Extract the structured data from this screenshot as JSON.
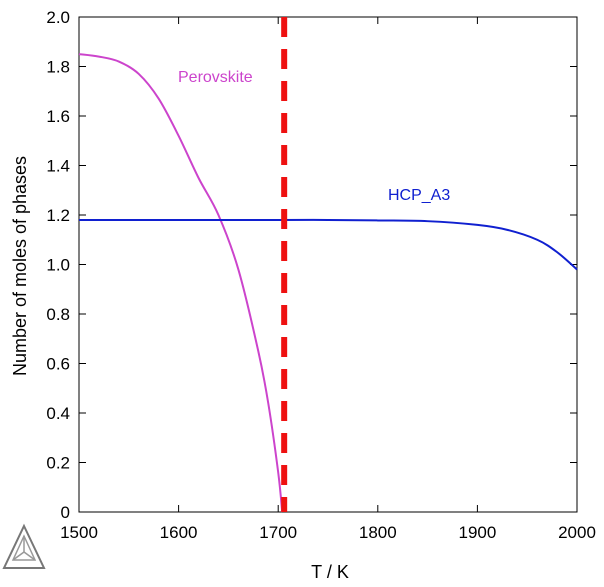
{
  "chart_data": {
    "type": "line",
    "title": "",
    "xlabel": "T / K",
    "ylabel": "Number of moles of phases",
    "xlim": [
      1500,
      2000
    ],
    "ylim": [
      0,
      2.0
    ],
    "xticks": [
      1500,
      1600,
      1700,
      1800,
      1900,
      2000
    ],
    "xtick_labels": [
      "1500",
      "1600",
      "1700",
      "1800",
      "1900",
      "2000"
    ],
    "yticks": [
      0,
      0.2,
      0.4,
      0.6,
      0.8,
      1.0,
      1.2,
      1.4,
      1.6,
      1.8,
      2.0
    ],
    "ytick_labels": [
      "0",
      "0.2",
      "0.4",
      "0.6",
      "0.8",
      "1.0",
      "1.2",
      "1.4",
      "1.6",
      "1.8",
      "2.0"
    ],
    "grid": false,
    "series": [
      {
        "name": "Perovskite",
        "color": "#cc44cc",
        "x": [
          1500,
          1520,
          1540,
          1560,
          1580,
          1600,
          1620,
          1640,
          1660,
          1680,
          1690,
          1700,
          1704
        ],
        "y": [
          1.85,
          1.84,
          1.82,
          1.77,
          1.67,
          1.52,
          1.35,
          1.2,
          0.98,
          0.65,
          0.44,
          0.16,
          0.0
        ]
      },
      {
        "name": "HCP_A3",
        "color": "#1020d0",
        "x": [
          1500,
          1600,
          1700,
          1750,
          1800,
          1850,
          1900,
          1930,
          1960,
          1980,
          2000
        ],
        "y": [
          1.18,
          1.18,
          1.18,
          1.18,
          1.178,
          1.175,
          1.16,
          1.14,
          1.1,
          1.05,
          0.98
        ]
      }
    ],
    "annotations": [
      {
        "kind": "vertical-dashed-line",
        "x": 1706,
        "color": "#ee1111"
      }
    ],
    "labels": {
      "perovskite": "Perovskite",
      "hcp": "HCP_A3"
    }
  },
  "logo": {
    "icon": "thermo-calc-triangle-logo"
  }
}
